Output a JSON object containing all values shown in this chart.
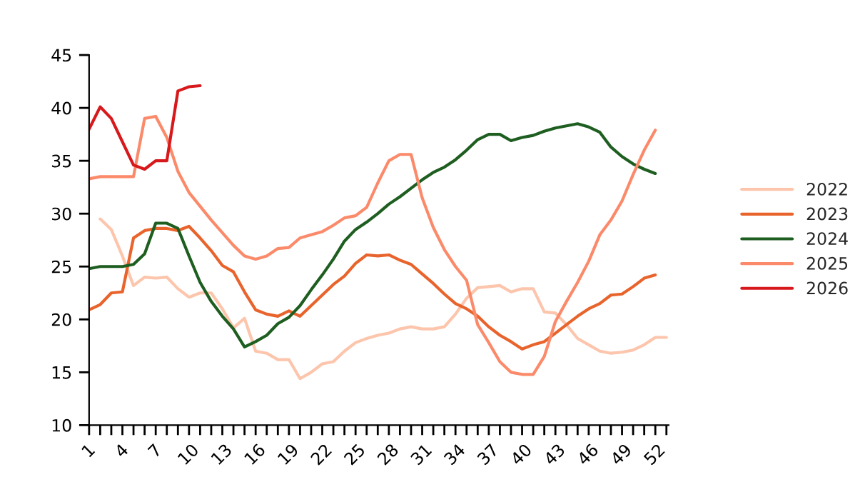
{
  "chart_data": {
    "type": "line",
    "x": [
      1,
      2,
      3,
      4,
      5,
      6,
      7,
      8,
      9,
      10,
      11,
      12,
      13,
      14,
      15,
      16,
      17,
      18,
      19,
      20,
      21,
      22,
      23,
      24,
      25,
      26,
      27,
      28,
      29,
      30,
      31,
      32,
      33,
      34,
      35,
      36,
      37,
      38,
      39,
      40,
      41,
      42,
      43,
      44,
      45,
      46,
      47,
      48,
      49,
      50,
      51,
      52,
      53
    ],
    "series": [
      {
        "name": "2022",
        "color": "#fcc5ac",
        "values": [
          null,
          29.5,
          28.5,
          26,
          23.2,
          24,
          23.9,
          24,
          22.9,
          22.1,
          22.5,
          22.5,
          21,
          19.2,
          20.1,
          17,
          16.8,
          16.2,
          16.2,
          14.4,
          15,
          15.8,
          16,
          17,
          17.8,
          18.2,
          18.5,
          18.7,
          19.1,
          19.3,
          19.1,
          19.1,
          19.3,
          20.5,
          22,
          23,
          23.1,
          23.2,
          22.6,
          22.9,
          22.9,
          20.7,
          20.6,
          19.5,
          18.2,
          17.6,
          17,
          16.8,
          16.9,
          17.1,
          17.6,
          18.3,
          18.3
        ]
      },
      {
        "name": "2023",
        "color": "#e8642c",
        "values": [
          20.9,
          21.4,
          22.5,
          22.6,
          27.7,
          28.4,
          28.6,
          28.6,
          28.4,
          28.8,
          27.7,
          26.5,
          25.1,
          24.5,
          22.6,
          20.9,
          20.5,
          20.3,
          20.8,
          20.3,
          21.3,
          22.3,
          23.3,
          24.1,
          25.3,
          26.1,
          26.0,
          26.1,
          25.6,
          25.2,
          24.3,
          23.4,
          22.4,
          21.5,
          21,
          20.3,
          19.3,
          18.5,
          17.9,
          17.2,
          17.6,
          17.9,
          18.7,
          19.5,
          20.3,
          21.0,
          21.5,
          22.3,
          22.4,
          23.1,
          23.9,
          24.2,
          null
        ]
      },
      {
        "name": "2024",
        "color": "#1e5e20",
        "values": [
          24.8,
          25,
          25,
          25,
          25.2,
          26.2,
          29.1,
          29.1,
          28.6,
          26,
          23.5,
          21.7,
          20.3,
          19.1,
          17.4,
          17.9,
          18.5,
          19.6,
          20.2,
          21.3,
          22.8,
          24.2,
          25.7,
          27.4,
          28.5,
          29.2,
          30.0,
          30.9,
          31.6,
          32.4,
          33.2,
          33.9,
          34.4,
          35.1,
          36.0,
          37.0,
          37.5,
          37.5,
          36.9,
          37.2,
          37.4,
          37.8,
          38.1,
          38.3,
          38.5,
          38.2,
          37.7,
          36.3,
          35.4,
          34.7,
          34.2,
          33.8,
          null
        ]
      },
      {
        "name": "2025",
        "color": "#fb8a6a",
        "values": [
          33.3,
          33.5,
          33.5,
          33.5,
          33.5,
          39,
          39.2,
          37.2,
          34.0,
          32.0,
          30.7,
          29.4,
          28.2,
          27.0,
          26.0,
          25.7,
          26.0,
          26.7,
          26.8,
          27.7,
          28.0,
          28.3,
          28.9,
          29.6,
          29.8,
          30.6,
          32.9,
          35.0,
          35.6,
          35.6,
          31.5,
          28.7,
          26.6,
          25.0,
          23.7,
          19.5,
          17.8,
          16.0,
          15.0,
          14.8,
          14.8,
          16.5,
          19.8,
          21.7,
          23.5,
          25.5,
          28.0,
          29.4,
          31.2,
          33.7,
          36.0,
          37.9,
          null
        ]
      },
      {
        "name": "2026",
        "color": "#d7191c",
        "values": [
          38,
          40.1,
          39,
          36.8,
          34.6,
          34.2,
          35,
          35,
          41.6,
          42,
          42.1,
          null,
          null,
          null,
          null,
          null,
          null,
          null,
          null,
          null,
          null,
          null,
          null,
          null,
          null,
          null,
          null,
          null,
          null,
          null,
          null,
          null,
          null,
          null,
          null,
          null,
          null,
          null,
          null,
          null,
          null,
          null,
          null,
          null,
          null,
          null,
          null,
          null,
          null,
          null,
          null,
          null,
          null
        ]
      }
    ],
    "xlim": [
      1,
      53.2
    ],
    "xticks": [
      1,
      {
        "value": 2,
        "label": null
      },
      {
        "value": 3,
        "label": null
      },
      4,
      {
        "value": 5,
        "label": null
      },
      {
        "value": 6,
        "label": null
      },
      7,
      {
        "value": 8,
        "label": null
      },
      {
        "value": 9,
        "label": null
      },
      10,
      {
        "value": 11,
        "label": null
      },
      {
        "value": 12,
        "label": null
      },
      13,
      {
        "value": 14,
        "label": null
      },
      {
        "value": 15,
        "label": null
      },
      16,
      {
        "value": 17,
        "label": null
      },
      {
        "value": 18,
        "label": null
      },
      19,
      {
        "value": 20,
        "label": null
      },
      {
        "value": 21,
        "label": null
      },
      22,
      {
        "value": 23,
        "label": null
      },
      {
        "value": 24,
        "label": null
      },
      25,
      {
        "value": 26,
        "label": null
      },
      {
        "value": 27,
        "label": null
      },
      28,
      {
        "value": 29,
        "label": null
      },
      {
        "value": 30,
        "label": null
      },
      31,
      {
        "value": 32,
        "label": null
      },
      {
        "value": 33,
        "label": null
      },
      34,
      {
        "value": 35,
        "label": null
      },
      {
        "value": 36,
        "label": null
      },
      37,
      {
        "value": 38,
        "label": null
      },
      {
        "value": 39,
        "label": null
      },
      40,
      {
        "value": 41,
        "label": null
      },
      {
        "value": 42,
        "label": null
      },
      43,
      {
        "value": 44,
        "label": null
      },
      {
        "value": 45,
        "label": null
      },
      46,
      {
        "value": 47,
        "label": null
      },
      {
        "value": 48,
        "label": null
      },
      49,
      {
        "value": 50,
        "label": null
      },
      {
        "value": 51,
        "label": null
      },
      52,
      {
        "value": 53,
        "label": null
      }
    ],
    "ylim": [
      10,
      45
    ],
    "yticks": [
      10,
      15,
      20,
      25,
      30,
      35,
      40,
      45
    ],
    "grid": false,
    "legend": "right",
    "line_style": "solid",
    "marker": "none"
  }
}
